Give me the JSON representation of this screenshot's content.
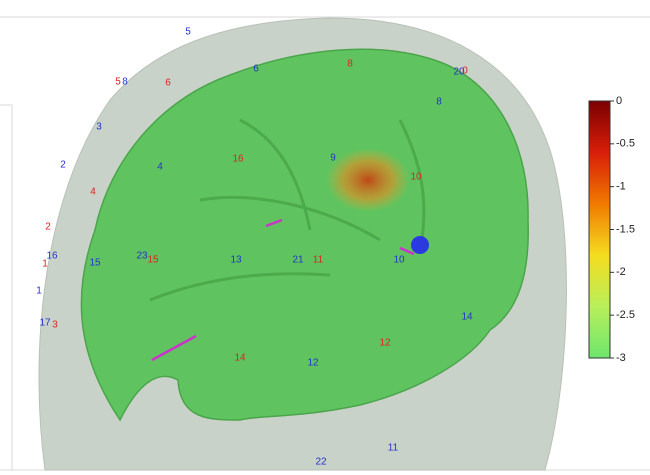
{
  "colorbar": {
    "clim": [
      -3,
      0
    ],
    "ticks": [
      0,
      -0.5,
      -1,
      -1.5,
      -2,
      -2.5,
      -3
    ],
    "colormap": [
      "#7a0000",
      "#d81e0a",
      "#f07a00",
      "#f5dc20",
      "#b8ef5a",
      "#6ee56e"
    ]
  },
  "electrodes": [
    {
      "label": "5",
      "color": "#2233cc"
    },
    {
      "label": "6",
      "color": "#2233cc"
    },
    {
      "label": "8",
      "color": "#2233cc"
    },
    {
      "label": "3",
      "color": "#2233cc"
    },
    {
      "label": "2",
      "color": "#2233cc"
    },
    {
      "label": "4",
      "color": "#2233cc"
    },
    {
      "label": "9",
      "color": "#2233cc"
    },
    {
      "label": "8",
      "color": "#2233cc"
    },
    {
      "label": "20",
      "color": "#2233cc"
    },
    {
      "label": "16",
      "color": "#2233cc"
    },
    {
      "label": "15",
      "color": "#2233cc"
    },
    {
      "label": "23",
      "color": "#2233cc"
    },
    {
      "label": "13",
      "color": "#2233cc"
    },
    {
      "label": "21",
      "color": "#2233cc"
    },
    {
      "label": "10",
      "color": "#2233cc"
    },
    {
      "label": "1",
      "color": "#2233cc"
    },
    {
      "label": "17",
      "color": "#2233cc"
    },
    {
      "label": "14",
      "color": "#2233cc"
    },
    {
      "label": "12",
      "color": "#2233cc"
    },
    {
      "label": "11",
      "color": "#2233cc"
    },
    {
      "label": "22",
      "color": "#2233cc"
    },
    {
      "label": "5",
      "color": "#dd2222"
    },
    {
      "label": "6",
      "color": "#dd2222"
    },
    {
      "label": "8",
      "color": "#dd2222"
    },
    {
      "label": "0",
      "color": "#dd2222"
    },
    {
      "label": "16",
      "color": "#dd2222"
    },
    {
      "label": "10",
      "color": "#dd2222"
    },
    {
      "label": "4",
      "color": "#dd2222"
    },
    {
      "label": "2",
      "color": "#dd2222"
    },
    {
      "label": "1",
      "color": "#dd2222"
    },
    {
      "label": "15",
      "color": "#dd2222"
    },
    {
      "label": "11",
      "color": "#dd2222"
    },
    {
      "label": "3",
      "color": "#dd2222"
    },
    {
      "label": "12",
      "color": "#dd2222"
    },
    {
      "label": "14",
      "color": "#dd2222"
    }
  ]
}
